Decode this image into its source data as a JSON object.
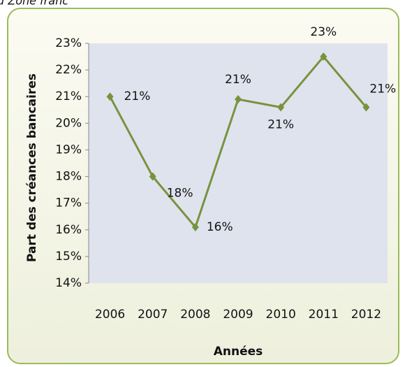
{
  "caption": "u Zone franc",
  "chart_data": {
    "type": "line",
    "y_label": "Part des créances bancaires",
    "x_label": "Années",
    "categories": [
      "2006",
      "2007",
      "2008",
      "2009",
      "2010",
      "2011",
      "2012"
    ],
    "series": [
      {
        "name": null,
        "color": "#77933c",
        "values": [
          21.0,
          18.0,
          16.1,
          20.9,
          20.6,
          22.5,
          20.6
        ],
        "value_labels": [
          "21%",
          "18%",
          "16%",
          "21%",
          "21%",
          "23%",
          "21%"
        ]
      }
    ],
    "ylim": [
      14,
      23
    ],
    "yticks": [
      {
        "value": 14,
        "label": "14%"
      },
      {
        "value": 15,
        "label": "15%"
      },
      {
        "value": 16,
        "label": "16%"
      },
      {
        "value": 17,
        "label": "17%"
      },
      {
        "value": 18,
        "label": "18%"
      },
      {
        "value": 19,
        "label": "19%"
      },
      {
        "value": 20,
        "label": "20%"
      },
      {
        "value": 21,
        "label": "21%"
      },
      {
        "value": 22,
        "label": "22%"
      },
      {
        "value": 23,
        "label": "23%"
      }
    ],
    "grid": false
  }
}
